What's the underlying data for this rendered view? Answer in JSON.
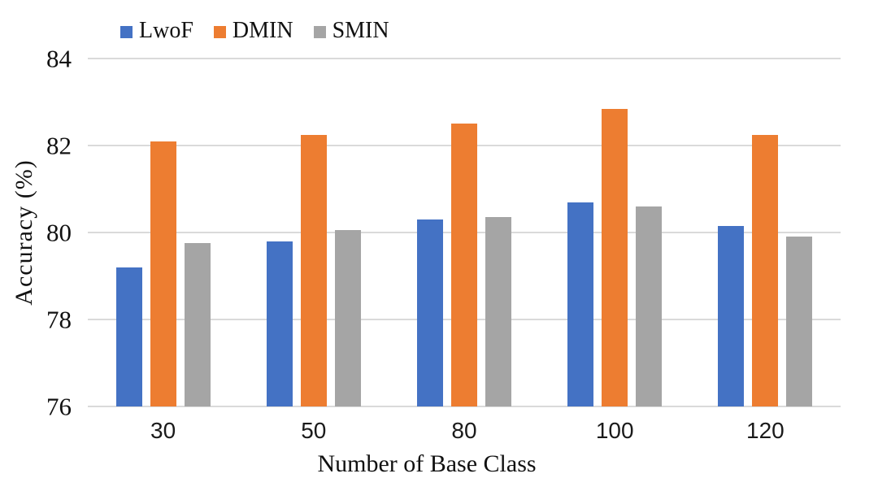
{
  "chart_data": {
    "type": "bar",
    "title": "",
    "categories": [
      "30",
      "50",
      "80",
      "100",
      "120"
    ],
    "series": [
      {
        "name": "LwoF",
        "color": "#4472C4",
        "values": [
          79.2,
          79.8,
          80.3,
          80.7,
          80.15
        ]
      },
      {
        "name": "DMIN",
        "color": "#ED7D31",
        "values": [
          82.1,
          82.25,
          82.5,
          82.85,
          82.25
        ]
      },
      {
        "name": "SMIN",
        "color": "#A5A5A5",
        "values": [
          79.75,
          80.05,
          80.35,
          80.6,
          79.9
        ]
      }
    ],
    "xlabel": "Number of Base Class",
    "ylabel": "Accuracy (%)",
    "ylim": [
      76,
      84
    ],
    "yticks": [
      76,
      78,
      80,
      82,
      84
    ],
    "grid": true,
    "gridline_color": "#DADADA",
    "legend_position": "top-left",
    "background": "#FFFFFF"
  }
}
